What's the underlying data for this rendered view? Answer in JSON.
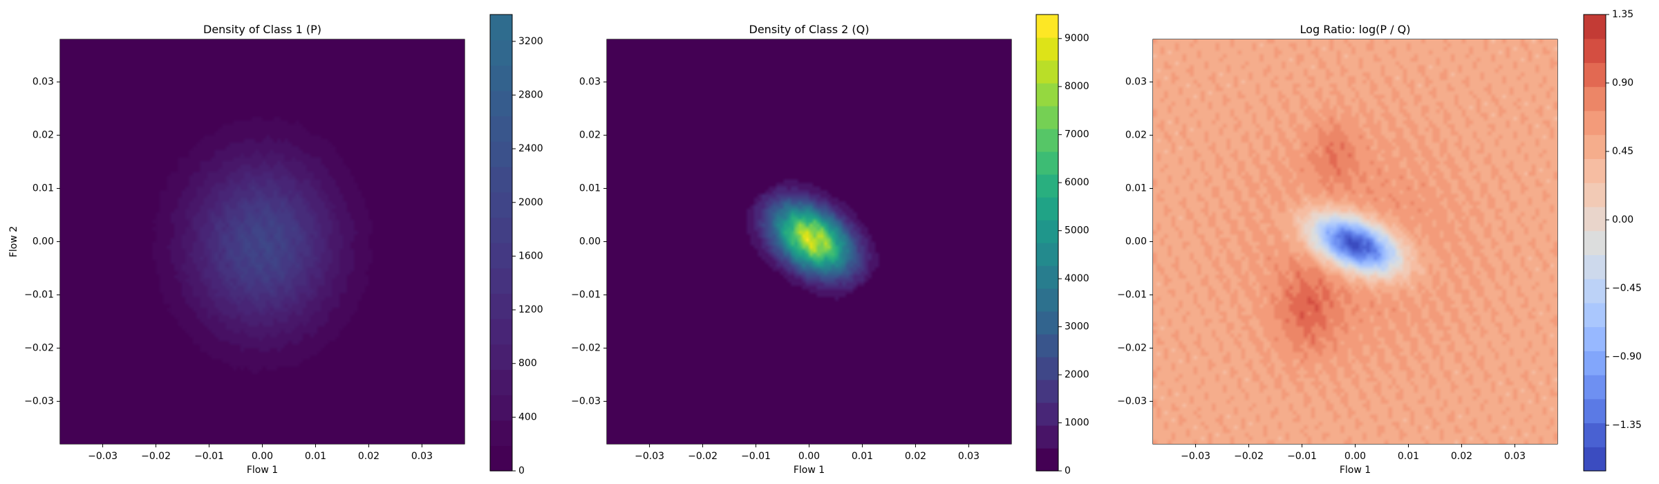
{
  "chart_data": [
    {
      "type": "heatmap",
      "title": "Density of Class 1 (P)",
      "xlabel": "Flow 1",
      "ylabel": "Flow 2",
      "xlim": [
        -0.038,
        0.038
      ],
      "ylim": [
        -0.038,
        0.038
      ],
      "xticks": [
        -0.03,
        -0.02,
        -0.01,
        0.0,
        0.01,
        0.02,
        0.03
      ],
      "xtick_labels": [
        "−0.03",
        "−0.02",
        "−0.01",
        "0.00",
        "0.01",
        "0.02",
        "0.03"
      ],
      "yticks": [
        0.03,
        0.02,
        0.01,
        0.0,
        -0.01,
        -0.02,
        -0.03
      ],
      "ytick_labels": [
        "0.03",
        "0.02",
        "0.01",
        "0.00",
        "−0.01",
        "−0.02",
        "−0.03"
      ],
      "grid": true,
      "colormap": "viridis",
      "background_color": "#440154",
      "colorbar": {
        "min": 0,
        "max": 3400,
        "ticks": [
          0,
          400,
          800,
          1200,
          1600,
          2000,
          2400,
          2800,
          3200
        ],
        "tick_labels": [
          "0",
          "400",
          "800",
          "1200",
          "1600",
          "2000",
          "2400",
          "2800",
          "3200"
        ],
        "colors": [
          "#440154",
          "#46075a",
          "#471063",
          "#481769",
          "#481f70",
          "#482576",
          "#472c7a",
          "#46337f",
          "#443983",
          "#423f85",
          "#404588",
          "#3e4a89",
          "#3b518b",
          "#39568c",
          "#365c8d",
          "#33628d",
          "#31688e",
          "#2f6c8e"
        ]
      },
      "density": {
        "peak": 1950,
        "center": [
          0.0,
          -0.0005
        ],
        "sigma_x": 0.0095,
        "sigma_y": 0.011,
        "rho": 0.0
      }
    },
    {
      "type": "heatmap",
      "title": "Density of Class 2 (Q)",
      "xlabel": "Flow 1",
      "ylabel": "",
      "xlim": [
        -0.038,
        0.038
      ],
      "ylim": [
        -0.038,
        0.038
      ],
      "xticks": [
        -0.03,
        -0.02,
        -0.01,
        0.0,
        0.01,
        0.02,
        0.03
      ],
      "xtick_labels": [
        "−0.03",
        "−0.02",
        "−0.01",
        "0.00",
        "0.01",
        "0.02",
        "0.03"
      ],
      "yticks": [
        0.03,
        0.02,
        0.01,
        0.0,
        -0.01,
        -0.02,
        -0.03
      ],
      "ytick_labels": [
        "0.03",
        "0.02",
        "0.01",
        "0.00",
        "−0.01",
        "−0.02",
        "−0.03"
      ],
      "grid": true,
      "colormap": "viridis",
      "background_color": "#440154",
      "colorbar": {
        "min": 0,
        "max": 9500,
        "ticks": [
          0,
          1000,
          2000,
          3000,
          4000,
          5000,
          6000,
          7000,
          8000,
          9000
        ],
        "tick_labels": [
          "0",
          "1000",
          "2000",
          "3000",
          "4000",
          "5000",
          "6000",
          "7000",
          "8000",
          "9000"
        ],
        "colors": [
          "#440154",
          "#481467",
          "#482677",
          "#453781",
          "#3f4788",
          "#39558c",
          "#32648e",
          "#2d718e",
          "#287d8e",
          "#238a8d",
          "#1f968b",
          "#20a386",
          "#29af7f",
          "#3dbc74",
          "#56c667",
          "#75d054",
          "#95d840",
          "#bade28",
          "#dde318",
          "#fde725"
        ]
      },
      "density": {
        "peak": 8600,
        "center": [
          0.0005,
          0.0005
        ],
        "sigma_x": 0.0052,
        "sigma_y": 0.0046,
        "rho": -0.4
      }
    },
    {
      "type": "heatmap",
      "title": "Log Ratio: log(P / Q)",
      "xlabel": "Flow 1",
      "ylabel": "",
      "xlim": [
        -0.038,
        0.038
      ],
      "ylim": [
        -0.038,
        0.038
      ],
      "xticks": [
        -0.03,
        -0.02,
        -0.01,
        0.0,
        0.01,
        0.02,
        0.03
      ],
      "xtick_labels": [
        "−0.03",
        "−0.02",
        "−0.01",
        "0.00",
        "0.01",
        "0.02",
        "0.03"
      ],
      "yticks": [
        0.03,
        0.02,
        0.01,
        0.0,
        -0.01,
        -0.02,
        -0.03
      ],
      "ytick_labels": [
        "0.03",
        "0.02",
        "0.01",
        "0.00",
        "−0.01",
        "−0.02",
        "−0.03"
      ],
      "grid": true,
      "colormap": "coolwarm",
      "background_color": "#f4b79b",
      "colorbar": {
        "min": -1.65,
        "max": 1.35,
        "ticks": [
          1.35,
          0.9,
          0.45,
          0.0,
          -0.45,
          -0.9,
          -1.35
        ],
        "tick_labels": [
          "1.35",
          "0.90",
          "0.45",
          "0.00",
          "−0.45",
          "−0.90",
          "−1.35"
        ],
        "colors": [
          "#3b4cc0",
          "#4961d2",
          "#5b7ae5",
          "#6e90f2",
          "#82a6fb",
          "#97b8ff",
          "#aac7fd",
          "#bcd2f7",
          "#cdd9ec",
          "#dcdddd",
          "#e9d5cb",
          "#f2cab5",
          "#f6bda2",
          "#f5ad8c",
          "#f39b7a",
          "#ec8667",
          "#e26952",
          "#d44e41",
          "#c33b35"
        ]
      },
      "log_ratio": {
        "far_value": 0.5,
        "mid_value": 0.72,
        "blob_center": [
          0.0,
          -0.0005
        ],
        "blob_sigma": [
          0.0058,
          0.0038
        ],
        "blob_rho": -0.45,
        "blob_depth": -1.55,
        "hot_spots": [
          {
            "center": [
              -0.009,
              -0.013
            ],
            "value": 1.1,
            "sigma": 0.004
          },
          {
            "center": [
              -0.004,
              0.017
            ],
            "value": 1.0,
            "sigma": 0.003
          }
        ]
      }
    }
  ]
}
